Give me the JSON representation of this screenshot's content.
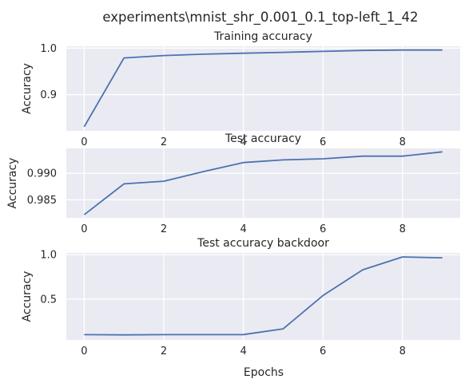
{
  "figure": {
    "suptitle": "experiments\\mnist_shr_0.001_0.1_top-left_1_42",
    "xlabel": "Epochs"
  },
  "chart_data": [
    {
      "type": "line",
      "title": "Training accuracy",
      "xlabel": "",
      "ylabel": "Accuracy",
      "x": [
        0,
        1,
        2,
        3,
        4,
        5,
        6,
        7,
        8,
        9
      ],
      "series": [
        {
          "values": [
            0.831,
            0.979,
            0.984,
            0.987,
            0.989,
            0.991,
            0.993,
            0.995,
            0.996,
            0.996
          ]
        }
      ],
      "xlim": [
        -0.45,
        9.45
      ],
      "ylim": [
        0.822,
        1.004
      ],
      "xticks": [
        "0",
        "2",
        "4",
        "6",
        "8"
      ],
      "xtick_values": [
        0,
        2,
        4,
        6,
        8
      ],
      "yticks": [
        "0.9",
        "1.0"
      ],
      "ytick_values": [
        0.9,
        1.0
      ],
      "grid": true,
      "color": "#4c72b0"
    },
    {
      "type": "line",
      "title": "Test accuracy",
      "xlabel": "",
      "ylabel": "Accuracy",
      "x": [
        0,
        1,
        2,
        3,
        4,
        5,
        6,
        7,
        8,
        9
      ],
      "series": [
        {
          "values": [
            0.9822,
            0.988,
            0.9885,
            0.9903,
            0.992,
            0.9925,
            0.9927,
            0.9932,
            0.9932,
            0.994
          ]
        }
      ],
      "xlim": [
        -0.45,
        9.45
      ],
      "ylim": [
        0.98162,
        0.99465
      ],
      "xticks": [
        "0",
        "2",
        "4",
        "6",
        "8"
      ],
      "xtick_values": [
        0,
        2,
        4,
        6,
        8
      ],
      "yticks": [
        "0.985",
        "0.990"
      ],
      "ytick_values": [
        0.985,
        0.99
      ],
      "grid": true,
      "color": "#4c72b0"
    },
    {
      "type": "line",
      "title": "Test accuracy backdoor",
      "xlabel": "Epochs",
      "ylabel": "Accuracy",
      "x": [
        0,
        1,
        2,
        3,
        4,
        5,
        6,
        7,
        8,
        9
      ],
      "series": [
        {
          "values": [
            0.099,
            0.097,
            0.099,
            0.099,
            0.1,
            0.165,
            0.54,
            0.83,
            0.975,
            0.965
          ]
        }
      ],
      "xlim": [
        -0.45,
        9.45
      ],
      "ylim": [
        0.04,
        1.02
      ],
      "xticks": [
        "0",
        "2",
        "4",
        "6",
        "8"
      ],
      "xtick_values": [
        0,
        2,
        4,
        6,
        8
      ],
      "yticks": [
        "0.5",
        "1.0"
      ],
      "ytick_values": [
        0.5,
        1.0
      ],
      "grid": true,
      "color": "#4c72b0"
    }
  ]
}
